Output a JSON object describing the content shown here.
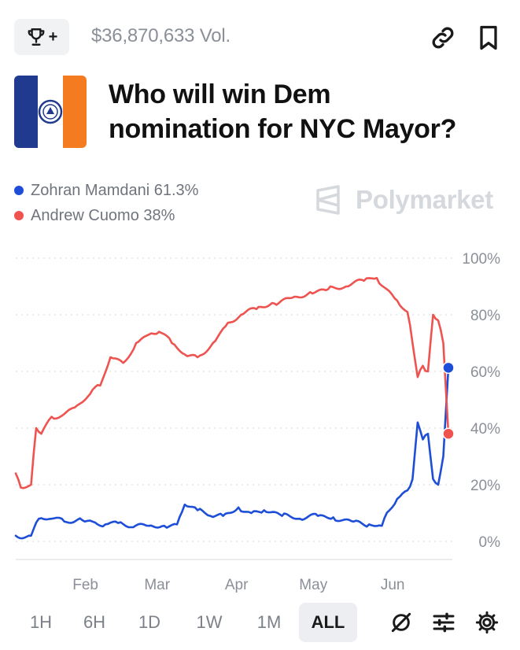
{
  "header": {
    "trophy_plus": "+",
    "volume": "$36,870,633 Vol."
  },
  "market": {
    "title_line1": "Who will win Dem",
    "title_line2": "nomination for NYC Mayor?"
  },
  "legend": [
    {
      "name": "Zohran Mamdani 61.3%",
      "color": "#1e4ed8"
    },
    {
      "name": "Andrew Cuomo 38%",
      "color": "#ef5350"
    }
  ],
  "brand": "Polymarket",
  "chart_data": {
    "type": "line",
    "x_ticks": [
      "Feb",
      "Mar",
      "Apr",
      "May",
      "Jun"
    ],
    "y_ticks": [
      "0%",
      "20%",
      "40%",
      "60%",
      "80%",
      "100%"
    ],
    "ylim": [
      0,
      100
    ],
    "xlim": [
      "2025-01-06",
      "2025-06-24"
    ],
    "grid": "horizontal-dotted",
    "legend_position": "top-left",
    "series": [
      {
        "name": "Zohran Mamdani",
        "color": "#1e4ed8",
        "end_value": 61.3,
        "points": [
          [
            "2025-01-06",
            2
          ],
          [
            "2025-01-12",
            2
          ],
          [
            "2025-01-15",
            8
          ],
          [
            "2025-01-20",
            8
          ],
          [
            "2025-01-25",
            7
          ],
          [
            "2025-02-01",
            7.5
          ],
          [
            "2025-02-05",
            7
          ],
          [
            "2025-02-10",
            6
          ],
          [
            "2025-02-15",
            6.5
          ],
          [
            "2025-02-20",
            5
          ],
          [
            "2025-02-27",
            5.5
          ],
          [
            "2025-03-05",
            5.5
          ],
          [
            "2025-03-10",
            6
          ],
          [
            "2025-03-13",
            13
          ],
          [
            "2025-03-18",
            11
          ],
          [
            "2025-03-23",
            9
          ],
          [
            "2025-03-28",
            9
          ],
          [
            "2025-04-03",
            12
          ],
          [
            "2025-04-08",
            10
          ],
          [
            "2025-04-13",
            11
          ],
          [
            "2025-04-20",
            9
          ],
          [
            "2025-04-27",
            8
          ],
          [
            "2025-05-04",
            9
          ],
          [
            "2025-05-10",
            8.5
          ],
          [
            "2025-05-18",
            7
          ],
          [
            "2025-05-24",
            6
          ],
          [
            "2025-05-29",
            5.5
          ],
          [
            "2025-06-01",
            11
          ],
          [
            "2025-06-04",
            15
          ],
          [
            "2025-06-08",
            18
          ],
          [
            "2025-06-10",
            22
          ],
          [
            "2025-06-12",
            42
          ],
          [
            "2025-06-14",
            36
          ],
          [
            "2025-06-16",
            38
          ],
          [
            "2025-06-18",
            22
          ],
          [
            "2025-06-20",
            20
          ],
          [
            "2025-06-22",
            30
          ],
          [
            "2025-06-24",
            61.3
          ]
        ]
      },
      {
        "name": "Andrew Cuomo",
        "color": "#ef5350",
        "end_value": 38,
        "points": [
          [
            "2025-01-06",
            24
          ],
          [
            "2025-01-08",
            19
          ],
          [
            "2025-01-12",
            20
          ],
          [
            "2025-01-14",
            40
          ],
          [
            "2025-01-16",
            38
          ],
          [
            "2025-01-20",
            44
          ],
          [
            "2025-01-25",
            45
          ],
          [
            "2025-01-30",
            48
          ],
          [
            "2025-02-04",
            52
          ],
          [
            "2025-02-08",
            55
          ],
          [
            "2025-02-12",
            65
          ],
          [
            "2025-02-17",
            63
          ],
          [
            "2025-02-22",
            70
          ],
          [
            "2025-02-27",
            73
          ],
          [
            "2025-03-03",
            74
          ],
          [
            "2025-03-08",
            70
          ],
          [
            "2025-03-13",
            66
          ],
          [
            "2025-03-18",
            65
          ],
          [
            "2025-03-24",
            70
          ],
          [
            "2025-03-29",
            76
          ],
          [
            "2025-04-04",
            80
          ],
          [
            "2025-04-10",
            82
          ],
          [
            "2025-04-17",
            84
          ],
          [
            "2025-04-24",
            86
          ],
          [
            "2025-05-01",
            88
          ],
          [
            "2025-05-08",
            89
          ],
          [
            "2025-05-15",
            90
          ],
          [
            "2025-05-22",
            92
          ],
          [
            "2025-05-27",
            93
          ],
          [
            "2025-05-31",
            89
          ],
          [
            "2025-06-04",
            85
          ],
          [
            "2025-06-08",
            81
          ],
          [
            "2025-06-10",
            70
          ],
          [
            "2025-06-12",
            58
          ],
          [
            "2025-06-14",
            62
          ],
          [
            "2025-06-16",
            60
          ],
          [
            "2025-06-18",
            80
          ],
          [
            "2025-06-20",
            78
          ],
          [
            "2025-06-22",
            70
          ],
          [
            "2025-06-24",
            38
          ]
        ]
      }
    ]
  },
  "time_tabs": [
    "1H",
    "6H",
    "1D",
    "1W",
    "1M",
    "ALL"
  ],
  "active_tab": "ALL"
}
